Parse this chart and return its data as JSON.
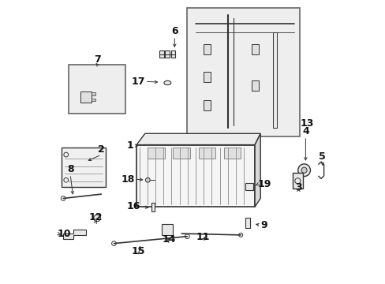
{
  "bg_color": "#ffffff",
  "fig_size": [
    4.89,
    3.6
  ],
  "dpi": 100,
  "line_color": "#333333",
  "part_color": "#555555",
  "bg_rect_color": "#e8e8e8",
  "font_size": 9
}
